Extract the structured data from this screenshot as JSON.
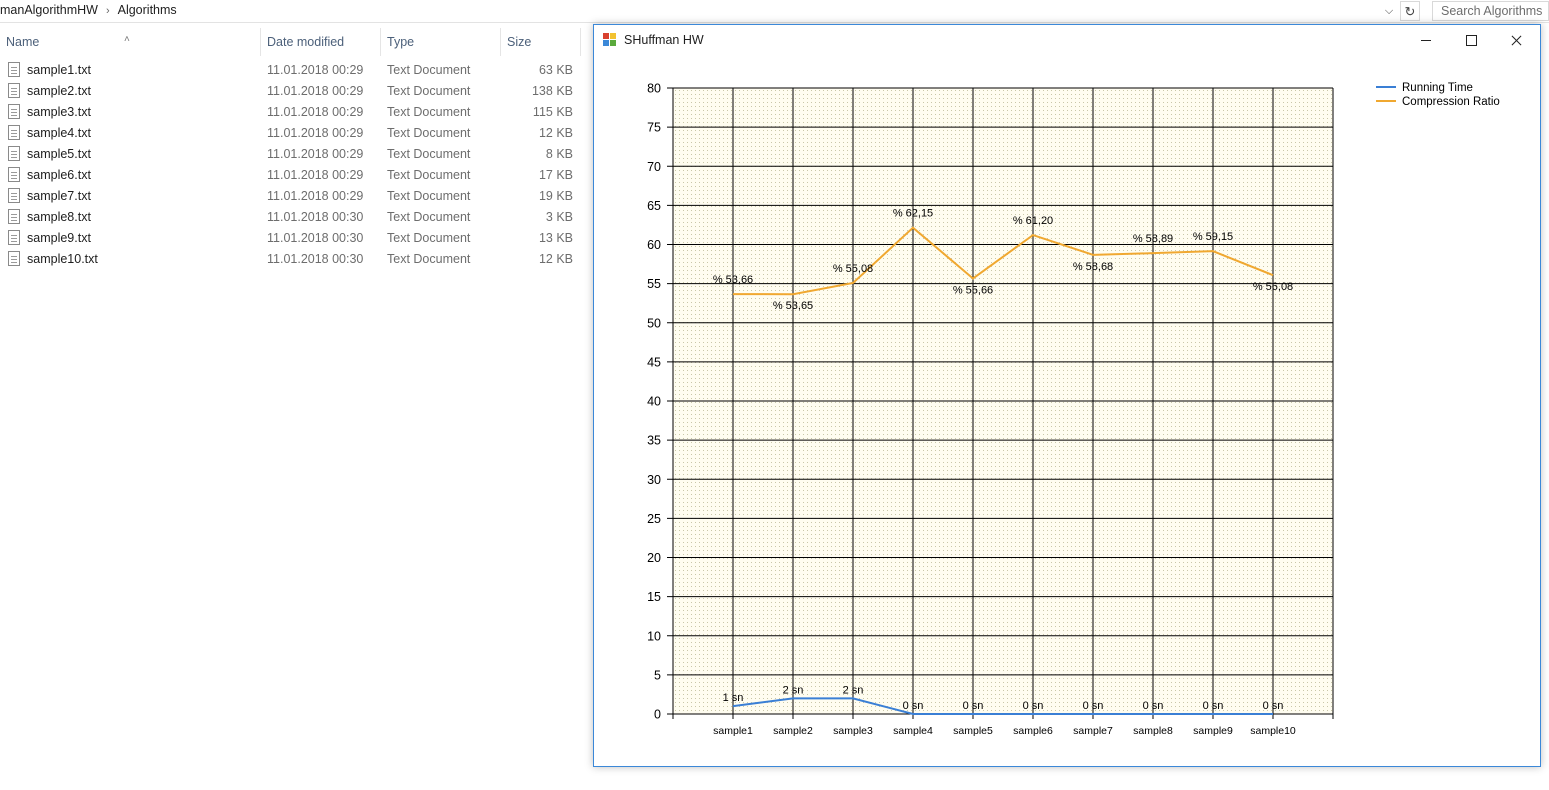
{
  "explorer": {
    "breadcrumb": [
      "manAlgorithmHW",
      "Algorithms"
    ],
    "search_placeholder": "Search Algorithms",
    "columns": [
      "Name",
      "Date modified",
      "Type",
      "Size"
    ],
    "files": [
      {
        "name": "sample1.txt",
        "date": "11.01.2018 00:29",
        "type": "Text Document",
        "size": "63 KB"
      },
      {
        "name": "sample2.txt",
        "date": "11.01.2018 00:29",
        "type": "Text Document",
        "size": "138 KB"
      },
      {
        "name": "sample3.txt",
        "date": "11.01.2018 00:29",
        "type": "Text Document",
        "size": "115 KB"
      },
      {
        "name": "sample4.txt",
        "date": "11.01.2018 00:29",
        "type": "Text Document",
        "size": "12 KB"
      },
      {
        "name": "sample5.txt",
        "date": "11.01.2018 00:29",
        "type": "Text Document",
        "size": "8 KB"
      },
      {
        "name": "sample6.txt",
        "date": "11.01.2018 00:29",
        "type": "Text Document",
        "size": "17 KB"
      },
      {
        "name": "sample7.txt",
        "date": "11.01.2018 00:29",
        "type": "Text Document",
        "size": "19 KB"
      },
      {
        "name": "sample8.txt",
        "date": "11.01.2018 00:30",
        "type": "Text Document",
        "size": "3 KB"
      },
      {
        "name": "sample9.txt",
        "date": "11.01.2018 00:30",
        "type": "Text Document",
        "size": "13 KB"
      },
      {
        "name": "sample10.txt",
        "date": "11.01.2018 00:30",
        "type": "Text Document",
        "size": "12 KB"
      }
    ]
  },
  "window": {
    "title": "SHuffman HW",
    "accent": "#3b88d8"
  },
  "chart_data": {
    "type": "line",
    "title": "",
    "xlabel": "",
    "ylabel": "",
    "categories": [
      "sample1",
      "sample2",
      "sample3",
      "sample4",
      "sample5",
      "sample6",
      "sample7",
      "sample8",
      "sample9",
      "sample10"
    ],
    "ylim": [
      0,
      80
    ],
    "yticks": [
      0,
      5,
      10,
      15,
      20,
      25,
      30,
      35,
      40,
      45,
      50,
      55,
      60,
      65,
      70,
      75,
      80
    ],
    "grid": true,
    "legend_position": "top-right",
    "series": [
      {
        "name": "Running Time",
        "color": "#3a7fd5",
        "values": [
          1,
          2,
          2,
          0,
          0,
          0,
          0,
          0,
          0,
          0
        ],
        "labels": [
          "1 sn",
          "2 sn",
          "2 sn",
          "0 sn",
          "0 sn",
          "0 sn",
          "0 sn",
          "0 sn",
          "0 sn",
          "0 sn"
        ]
      },
      {
        "name": "Compression Ratio",
        "color": "#f0a830",
        "values": [
          53.66,
          53.65,
          55.08,
          62.15,
          55.66,
          61.2,
          58.68,
          58.89,
          59.15,
          56.08
        ],
        "labels": [
          "% 53,66",
          "% 53,65",
          "% 55,08",
          "% 62,15",
          "% 55,66",
          "% 61,20",
          "% 58,68",
          "% 58,89",
          "% 59,15",
          "% 56,08"
        ]
      }
    ]
  }
}
